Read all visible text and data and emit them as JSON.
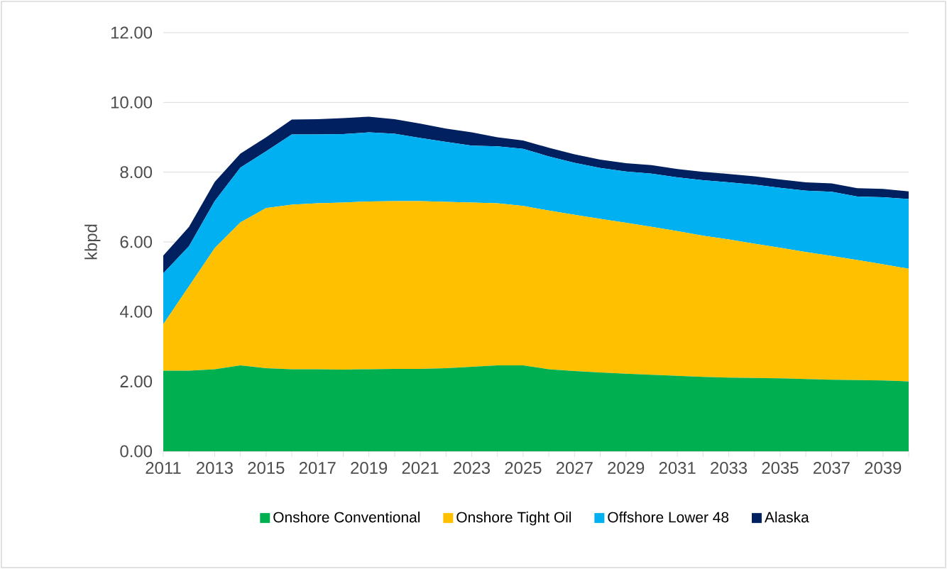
{
  "chart_data": {
    "type": "area",
    "stacked": true,
    "ylabel": "kbpd",
    "categories": [
      "2011",
      null,
      "2013",
      null,
      "2015",
      null,
      "2017",
      null,
      "2019",
      null,
      "2021",
      null,
      "2023",
      null,
      "2025",
      null,
      "2027",
      null,
      "2029",
      null,
      "2031",
      null,
      "2033",
      null,
      "2035",
      null,
      "2037",
      null,
      "2039",
      null
    ],
    "series": [
      {
        "name": "Onshore Conventional",
        "color": "#00b050",
        "values": [
          2.31,
          2.31,
          2.35,
          2.46,
          2.38,
          2.35,
          2.35,
          2.34,
          2.35,
          2.36,
          2.36,
          2.38,
          2.42,
          2.46,
          2.46,
          2.35,
          2.3,
          2.26,
          2.22,
          2.19,
          2.16,
          2.13,
          2.11,
          2.1,
          2.09,
          2.07,
          2.05,
          2.04,
          2.03,
          2.0
        ]
      },
      {
        "name": "Onshore Tight Oil",
        "color": "#ffc000",
        "values": [
          1.33,
          2.42,
          3.47,
          4.1,
          4.59,
          4.72,
          4.76,
          4.79,
          4.81,
          4.81,
          4.81,
          4.77,
          4.71,
          4.65,
          4.57,
          4.55,
          4.48,
          4.4,
          4.33,
          4.24,
          4.15,
          4.05,
          3.96,
          3.85,
          3.74,
          3.64,
          3.55,
          3.44,
          3.33,
          3.23
        ]
      },
      {
        "name": "Offshore Lower 48",
        "color": "#00b0f0",
        "values": [
          1.46,
          1.15,
          1.35,
          1.57,
          1.63,
          2.01,
          1.97,
          1.96,
          1.98,
          1.93,
          1.81,
          1.72,
          1.63,
          1.63,
          1.64,
          1.55,
          1.49,
          1.46,
          1.47,
          1.53,
          1.54,
          1.59,
          1.64,
          1.69,
          1.72,
          1.76,
          1.84,
          1.82,
          1.92,
          2.0
        ]
      },
      {
        "name": "Alaska",
        "color": "#002060",
        "values": [
          0.51,
          0.55,
          0.55,
          0.4,
          0.4,
          0.43,
          0.44,
          0.46,
          0.45,
          0.42,
          0.41,
          0.38,
          0.38,
          0.26,
          0.24,
          0.25,
          0.24,
          0.24,
          0.24,
          0.24,
          0.24,
          0.24,
          0.24,
          0.24,
          0.24,
          0.24,
          0.24,
          0.24,
          0.24,
          0.22
        ]
      }
    ],
    "ylim": [
      0,
      12
    ],
    "yticks": [
      {
        "value": 0,
        "label": "0.00"
      },
      {
        "value": 2,
        "label": "2.00"
      },
      {
        "value": 4,
        "label": "4.00"
      },
      {
        "value": 6,
        "label": "6.00"
      },
      {
        "value": 8,
        "label": "8.00"
      },
      {
        "value": 10,
        "label": "10.00"
      },
      {
        "value": 12,
        "label": "12.00"
      }
    ],
    "grid": "y",
    "legend": "bottom"
  }
}
